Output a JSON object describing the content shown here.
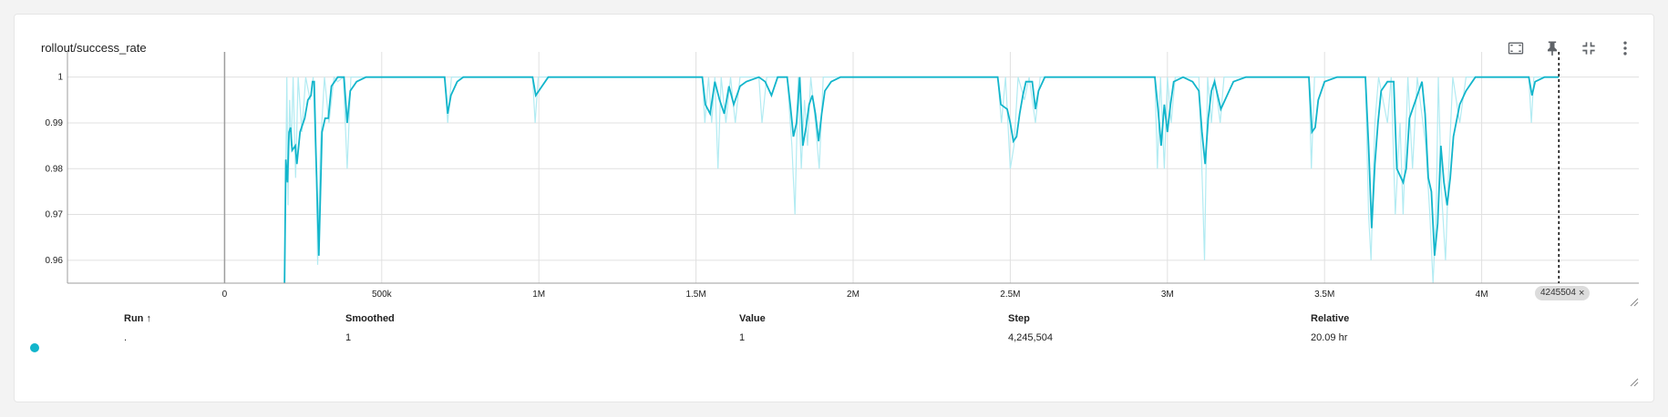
{
  "card": {
    "title": "rollout/success_rate"
  },
  "toolbar": {
    "icons": [
      "fit-domain-icon",
      "pin-icon",
      "collapse-icon",
      "more-vert-icon"
    ]
  },
  "colors": {
    "series": "#12b5cb",
    "series_raw": "#b2ebf2",
    "grid": "#e0e0e0",
    "text": "#212121"
  },
  "chart_data": {
    "type": "line",
    "title": "rollout/success_rate",
    "xlabel": "",
    "ylabel": "",
    "xlim": [
      -500000,
      4500000
    ],
    "ylim": [
      0.955,
      1.0055
    ],
    "x_ticks": [
      0,
      500000,
      1000000,
      1500000,
      2000000,
      2500000,
      3000000,
      3500000,
      4000000
    ],
    "x_tick_labels": [
      "0",
      "500k",
      "1M",
      "1.5M",
      "2M",
      "2.5M",
      "3M",
      "3.5M",
      "4M"
    ],
    "y_ticks": [
      0.96,
      0.97,
      0.98,
      0.99,
      1
    ],
    "y_tick_labels": [
      "0.96",
      "0.97",
      "0.98",
      "0.99",
      "1"
    ],
    "grid": true,
    "hover_step": 4245504,
    "series": [
      {
        "name": "Smoothed",
        "points": [
          [
            190000,
            0.95
          ],
          [
            195000,
            0.982
          ],
          [
            200000,
            0.977
          ],
          [
            205000,
            0.988
          ],
          [
            210000,
            0.989
          ],
          [
            215000,
            0.984
          ],
          [
            225000,
            0.985
          ],
          [
            230000,
            0.981
          ],
          [
            240000,
            0.988
          ],
          [
            255000,
            0.991
          ],
          [
            265000,
            0.995
          ],
          [
            275000,
            0.996
          ],
          [
            280000,
            0.999
          ],
          [
            285000,
            0.999
          ],
          [
            290000,
            0.985
          ],
          [
            300000,
            0.961
          ],
          [
            310000,
            0.988
          ],
          [
            320000,
            0.991
          ],
          [
            330000,
            0.991
          ],
          [
            340000,
            0.998
          ],
          [
            350000,
            0.999
          ],
          [
            360000,
            1.0
          ],
          [
            370000,
            1.0
          ],
          [
            380000,
            1.0
          ],
          [
            390000,
            0.99
          ],
          [
            400000,
            0.997
          ],
          [
            420000,
            0.999
          ],
          [
            450000,
            1.0
          ],
          [
            700000,
            1.0
          ],
          [
            710000,
            0.992
          ],
          [
            720000,
            0.996
          ],
          [
            740000,
            0.999
          ],
          [
            760000,
            1.0
          ],
          [
            980000,
            1.0
          ],
          [
            990000,
            0.996
          ],
          [
            1010000,
            0.998
          ],
          [
            1030000,
            1.0
          ],
          [
            1520000,
            1.0
          ],
          [
            1530000,
            0.994
          ],
          [
            1545000,
            0.992
          ],
          [
            1560000,
            0.999
          ],
          [
            1575000,
            0.995
          ],
          [
            1590000,
            0.992
          ],
          [
            1605000,
            0.998
          ],
          [
            1620000,
            0.994
          ],
          [
            1640000,
            0.998
          ],
          [
            1660000,
            0.999
          ],
          [
            1700000,
            1.0
          ],
          [
            1720000,
            0.999
          ],
          [
            1740000,
            0.996
          ],
          [
            1760000,
            1.0
          ],
          [
            1790000,
            1.0
          ],
          [
            1800000,
            0.994
          ],
          [
            1810000,
            0.987
          ],
          [
            1820000,
            0.99
          ],
          [
            1830000,
            1.0
          ],
          [
            1840000,
            0.985
          ],
          [
            1850000,
            0.989
          ],
          [
            1860000,
            0.994
          ],
          [
            1870000,
            0.996
          ],
          [
            1880000,
            0.992
          ],
          [
            1890000,
            0.986
          ],
          [
            1900000,
            0.992
          ],
          [
            1910000,
            0.997
          ],
          [
            1930000,
            0.999
          ],
          [
            1960000,
            1.0
          ],
          [
            2460000,
            1.0
          ],
          [
            2470000,
            0.994
          ],
          [
            2490000,
            0.993
          ],
          [
            2500000,
            0.99
          ],
          [
            2510000,
            0.986
          ],
          [
            2520000,
            0.987
          ],
          [
            2530000,
            0.992
          ],
          [
            2540000,
            0.996
          ],
          [
            2550000,
            0.999
          ],
          [
            2570000,
            0.999
          ],
          [
            2580000,
            0.993
          ],
          [
            2590000,
            0.997
          ],
          [
            2610000,
            1.0
          ],
          [
            2960000,
            1.0
          ],
          [
            2970000,
            0.993
          ],
          [
            2980000,
            0.985
          ],
          [
            2990000,
            0.994
          ],
          [
            3000000,
            0.988
          ],
          [
            3010000,
            0.994
          ],
          [
            3020000,
            0.999
          ],
          [
            3050000,
            1.0
          ],
          [
            3080000,
            0.999
          ],
          [
            3100000,
            0.997
          ],
          [
            3110000,
            0.988
          ],
          [
            3120000,
            0.981
          ],
          [
            3130000,
            0.991
          ],
          [
            3140000,
            0.997
          ],
          [
            3150000,
            0.999
          ],
          [
            3170000,
            0.993
          ],
          [
            3190000,
            0.996
          ],
          [
            3210000,
            0.999
          ],
          [
            3250000,
            1.0
          ],
          [
            3450000,
            1.0
          ],
          [
            3460000,
            0.988
          ],
          [
            3470000,
            0.989
          ],
          [
            3480000,
            0.995
          ],
          [
            3500000,
            0.999
          ],
          [
            3540000,
            1.0
          ],
          [
            3630000,
            1.0
          ],
          [
            3640000,
            0.985
          ],
          [
            3650000,
            0.967
          ],
          [
            3660000,
            0.981
          ],
          [
            3670000,
            0.99
          ],
          [
            3680000,
            0.997
          ],
          [
            3700000,
            0.999
          ],
          [
            3720000,
            0.999
          ],
          [
            3730000,
            0.98
          ],
          [
            3750000,
            0.977
          ],
          [
            3760000,
            0.98
          ],
          [
            3770000,
            0.991
          ],
          [
            3790000,
            0.995
          ],
          [
            3810000,
            0.999
          ],
          [
            3820000,
            0.992
          ],
          [
            3830000,
            0.978
          ],
          [
            3840000,
            0.975
          ],
          [
            3850000,
            0.961
          ],
          [
            3860000,
            0.968
          ],
          [
            3870000,
            0.985
          ],
          [
            3880000,
            0.977
          ],
          [
            3890000,
            0.972
          ],
          [
            3900000,
            0.978
          ],
          [
            3910000,
            0.987
          ],
          [
            3930000,
            0.994
          ],
          [
            3950000,
            0.997
          ],
          [
            3980000,
            1.0
          ],
          [
            4150000,
            1.0
          ],
          [
            4160000,
            0.996
          ],
          [
            4170000,
            0.999
          ],
          [
            4200000,
            1.0
          ],
          [
            4245504,
            1.0
          ]
        ]
      },
      {
        "name": "Value",
        "points": [
          [
            190000,
            0.95
          ],
          [
            195000,
            0.98
          ],
          [
            198000,
            1.0
          ],
          [
            202000,
            0.972
          ],
          [
            207000,
            0.995
          ],
          [
            212000,
            0.985
          ],
          [
            218000,
            1.0
          ],
          [
            226000,
            0.978
          ],
          [
            234000,
            1.0
          ],
          [
            246000,
            0.988
          ],
          [
            258000,
            1.0
          ],
          [
            272000,
            0.995
          ],
          [
            282000,
            1.0
          ],
          [
            292000,
            0.978
          ],
          [
            296000,
            0.959
          ],
          [
            305000,
            0.985
          ],
          [
            318000,
            1.0
          ],
          [
            332000,
            0.99
          ],
          [
            348000,
            1.0
          ],
          [
            360000,
            0.999
          ],
          [
            378000,
            1.0
          ],
          [
            390000,
            0.98
          ],
          [
            402000,
            1.0
          ],
          [
            700000,
            1.0
          ],
          [
            710000,
            0.99
          ],
          [
            722000,
            1.0
          ],
          [
            980000,
            1.0
          ],
          [
            988000,
            0.99
          ],
          [
            998000,
            1.0
          ],
          [
            1520000,
            1.0
          ],
          [
            1528000,
            0.99
          ],
          [
            1540000,
            1.0
          ],
          [
            1550000,
            0.99
          ],
          [
            1560000,
            1.0
          ],
          [
            1570000,
            0.98
          ],
          [
            1580000,
            1.0
          ],
          [
            1595000,
            0.99
          ],
          [
            1610000,
            1.0
          ],
          [
            1625000,
            0.99
          ],
          [
            1640000,
            1.0
          ],
          [
            1700000,
            1.0
          ],
          [
            1710000,
            0.99
          ],
          [
            1725000,
            1.0
          ],
          [
            1790000,
            1.0
          ],
          [
            1805000,
            0.985
          ],
          [
            1815000,
            0.97
          ],
          [
            1825000,
            1.0
          ],
          [
            1835000,
            0.98
          ],
          [
            1845000,
            0.995
          ],
          [
            1855000,
            0.985
          ],
          [
            1865000,
            1.0
          ],
          [
            1880000,
            0.99
          ],
          [
            1892000,
            0.98
          ],
          [
            1905000,
            1.0
          ],
          [
            2460000,
            1.0
          ],
          [
            2472000,
            0.99
          ],
          [
            2485000,
            1.0
          ],
          [
            2500000,
            0.98
          ],
          [
            2512000,
            0.985
          ],
          [
            2525000,
            1.0
          ],
          [
            2545000,
            0.995
          ],
          [
            2560000,
            1.0
          ],
          [
            2580000,
            0.99
          ],
          [
            2595000,
            1.0
          ],
          [
            2960000,
            1.0
          ],
          [
            2968000,
            0.98
          ],
          [
            2978000,
            1.0
          ],
          [
            2990000,
            0.98
          ],
          [
            3000000,
            1.0
          ],
          [
            3012000,
            0.99
          ],
          [
            3025000,
            1.0
          ],
          [
            3100000,
            1.0
          ],
          [
            3112000,
            0.975
          ],
          [
            3118000,
            0.96
          ],
          [
            3128000,
            1.0
          ],
          [
            3140000,
            0.99
          ],
          [
            3150000,
            1.0
          ],
          [
            3168000,
            0.99
          ],
          [
            3180000,
            1.0
          ],
          [
            3450000,
            1.0
          ],
          [
            3458000,
            0.98
          ],
          [
            3468000,
            1.0
          ],
          [
            3630000,
            1.0
          ],
          [
            3640000,
            0.97
          ],
          [
            3648000,
            0.96
          ],
          [
            3660000,
            0.99
          ],
          [
            3672000,
            1.0
          ],
          [
            3700000,
            0.99
          ],
          [
            3712000,
            1.0
          ],
          [
            3725000,
            0.97
          ],
          [
            3740000,
            0.99
          ],
          [
            3750000,
            0.97
          ],
          [
            3765000,
            1.0
          ],
          [
            3780000,
            0.98
          ],
          [
            3795000,
            1.0
          ],
          [
            3822000,
            0.985
          ],
          [
            3835000,
            0.97
          ],
          [
            3845000,
            0.955
          ],
          [
            3855000,
            0.97
          ],
          [
            3862000,
            1.0
          ],
          [
            3872000,
            0.975
          ],
          [
            3885000,
            0.96
          ],
          [
            3895000,
            0.98
          ],
          [
            3908000,
            1.0
          ],
          [
            3930000,
            0.99
          ],
          [
            3950000,
            1.0
          ],
          [
            4150000,
            1.0
          ],
          [
            4158000,
            0.99
          ],
          [
            4166000,
            1.0
          ],
          [
            4245504,
            1.0
          ]
        ]
      }
    ]
  },
  "table": {
    "headers": {
      "run": "Run ↑",
      "smoothed": "Smoothed",
      "value": "Value",
      "step": "Step",
      "relative": "Relative"
    },
    "row": {
      "run": ".",
      "smoothed": "1",
      "value": "1",
      "step": "4,245,504",
      "relative": "20.09 hr"
    }
  },
  "hover": {
    "step_badge": "4245504",
    "close": "×"
  }
}
